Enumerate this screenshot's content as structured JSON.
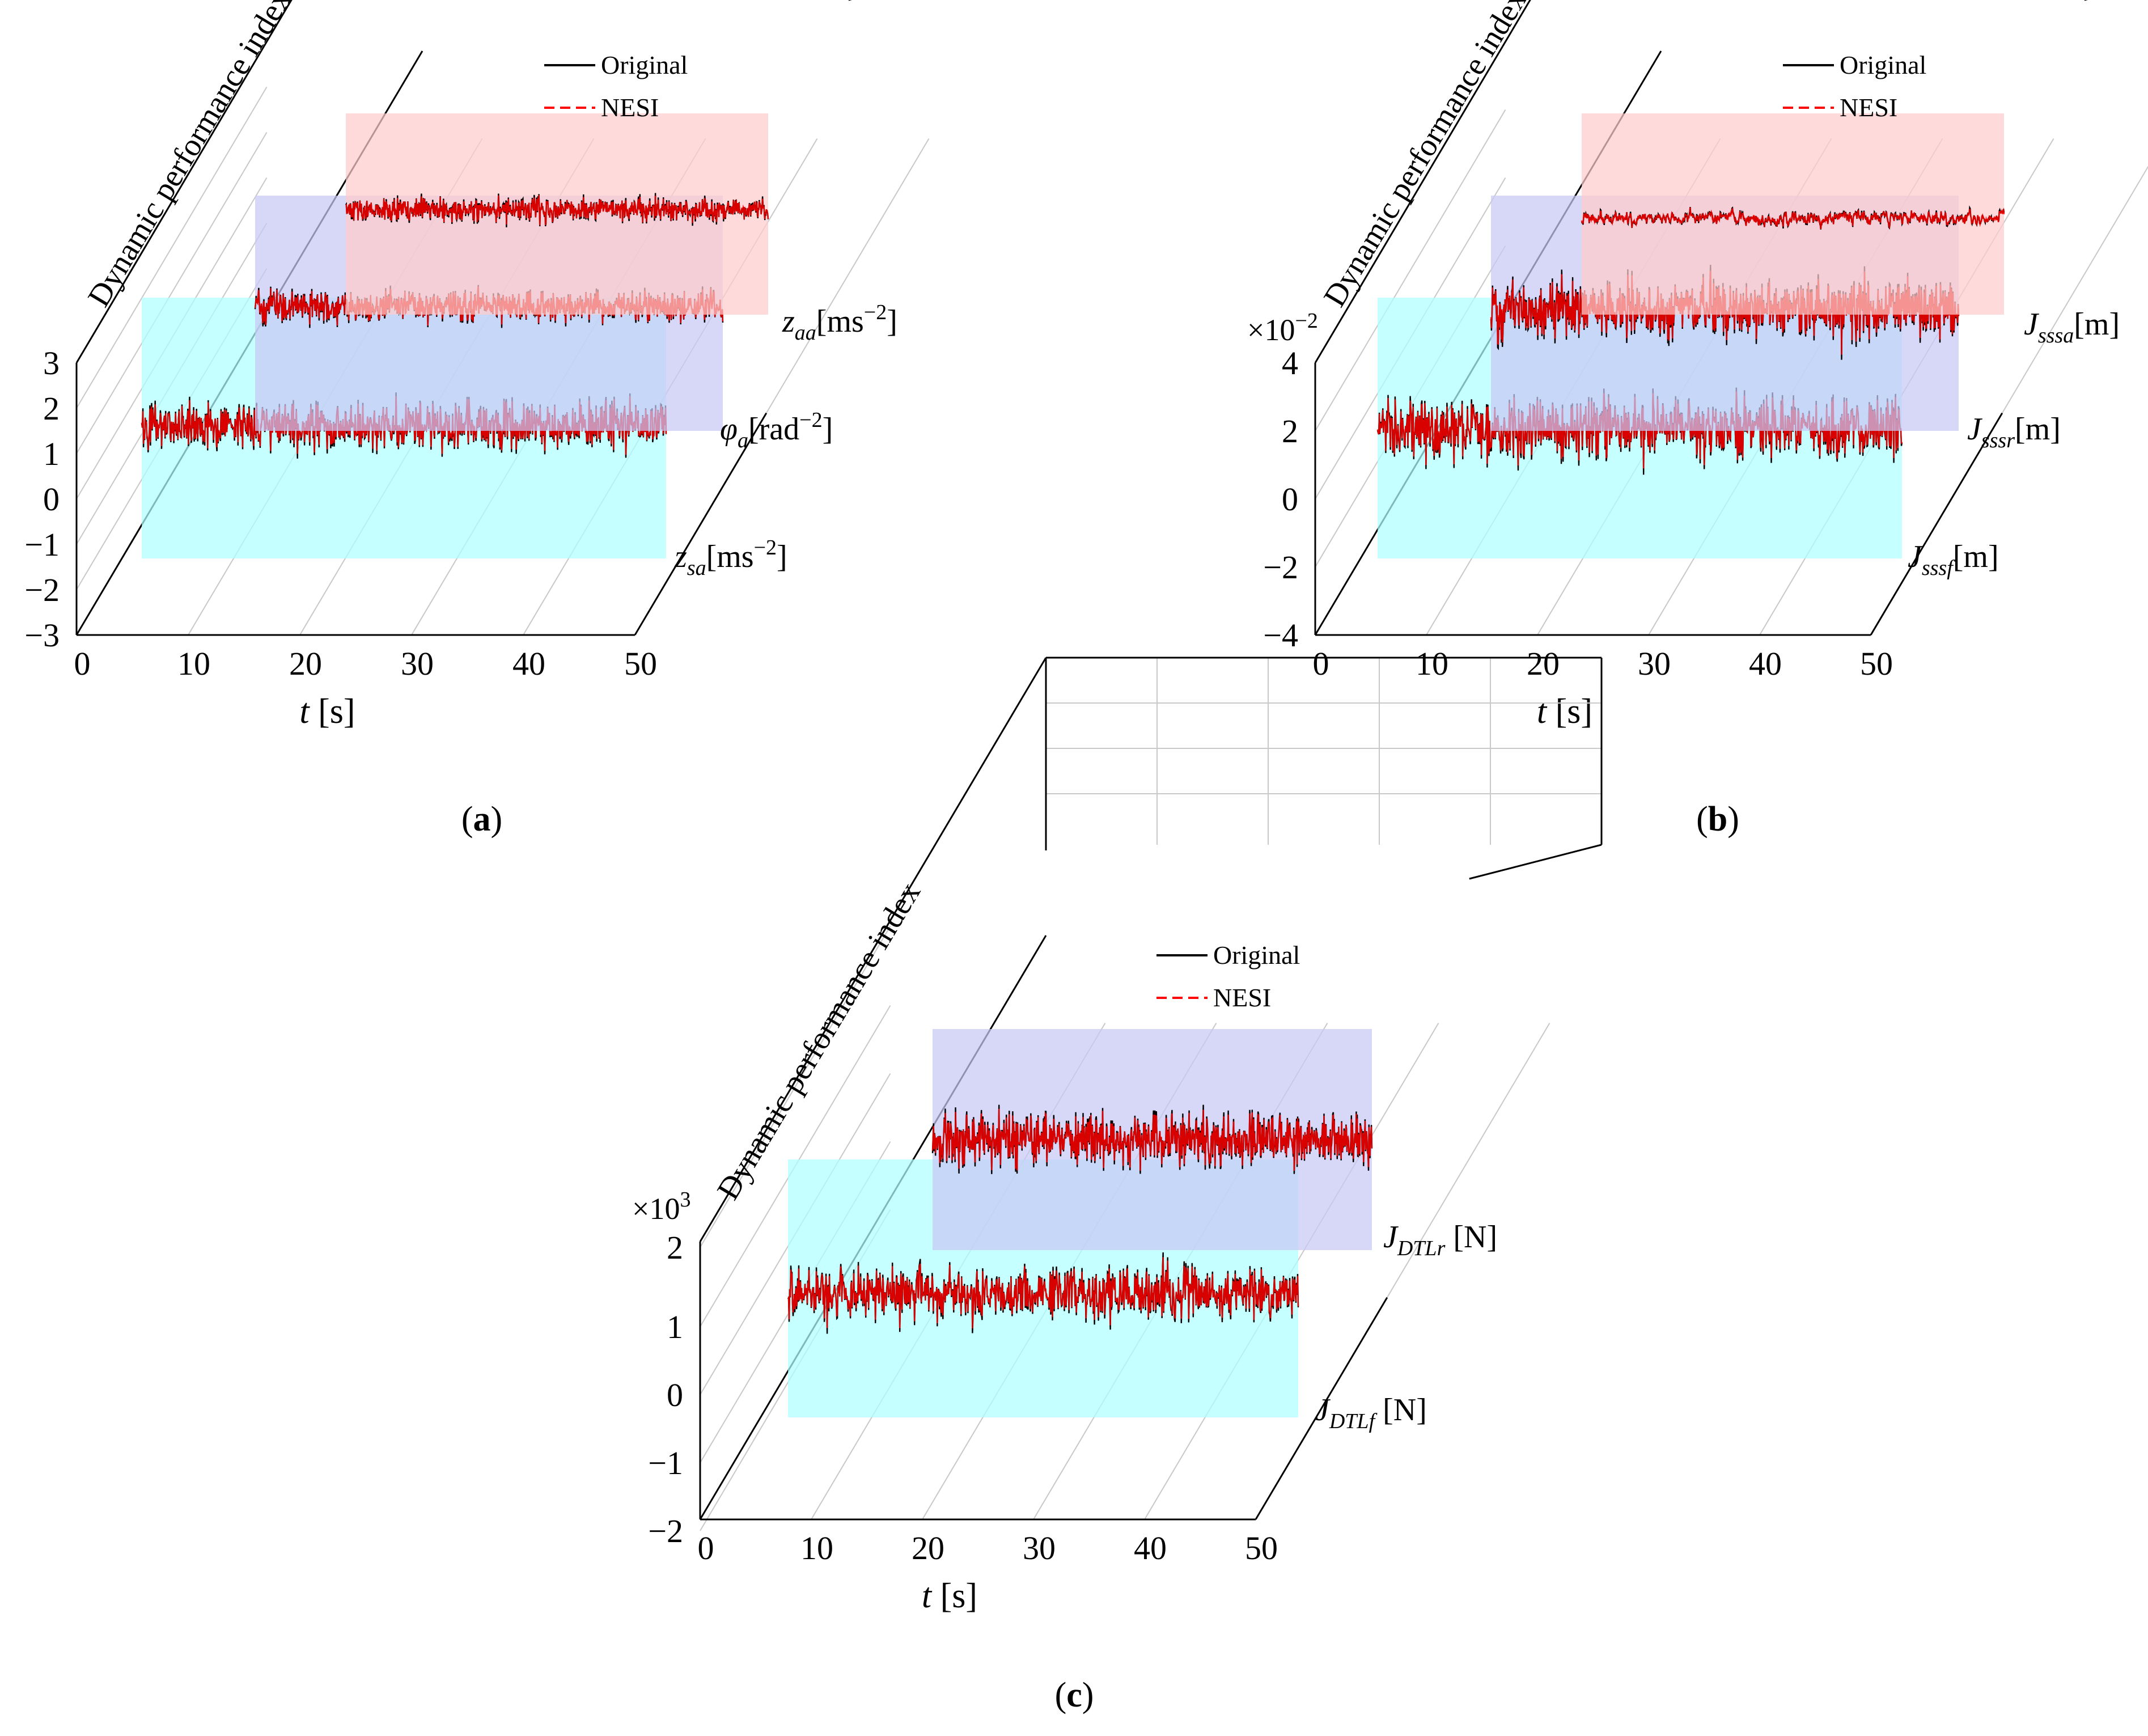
{
  "figure": {
    "panels": [
      {
        "id": "a",
        "caption_letter": "a",
        "chart_data": {
          "type": "line",
          "title": "",
          "zlabel": "Dynamic performance index",
          "multiplier_base": "",
          "multiplier_exp": "",
          "xlabel_var": "t",
          "xlabel_unit": " [s]",
          "xlim": [
            0,
            50
          ],
          "zlim": [
            -3,
            3
          ],
          "x_ticks": [
            "0",
            "10",
            "20",
            "30",
            "40",
            "50"
          ],
          "z_ticks": [
            "3",
            "2",
            "1",
            "0",
            "−1",
            "−2",
            "−3"
          ],
          "legend": [
            "Original",
            "NESI"
          ],
          "legend_position": "top-right",
          "series_colors": {
            "Original": "#000000",
            "NESI": "#ff0000"
          },
          "series": [
            {
              "name": "z_sa",
              "label_main": "z",
              "label_sub": "sa",
              "label_unit": "[ms",
              "label_sup": "−2",
              "label_tail": "]",
              "mean": 1.4,
              "amplitude": 0.45,
              "panel_color": "#b0ffff"
            },
            {
              "name": "φ_a",
              "label_main": "φ",
              "label_sub": "a",
              "label_unit": "[rad",
              "label_sup": "−2",
              "label_tail": "]",
              "mean": 1.4,
              "amplitude": 0.3,
              "panel_color": "#c8c8f5"
            },
            {
              "name": "z_aa",
              "label_main": "z",
              "label_sub": "aa",
              "label_unit": "[ms",
              "label_sup": "−2",
              "label_tail": "]",
              "mean": 1.4,
              "amplitude": 0.22,
              "panel_color": "#ffcccc"
            }
          ]
        }
      },
      {
        "id": "b",
        "caption_letter": "b",
        "chart_data": {
          "type": "line",
          "title": "",
          "zlabel": "Dynamic performance index",
          "multiplier_base": "×10",
          "multiplier_exp": "−2",
          "xlabel_var": "t",
          "xlabel_unit": " [s]",
          "xlim": [
            0,
            50
          ],
          "zlim": [
            -4,
            4
          ],
          "x_ticks": [
            "0",
            "10",
            "20",
            "30",
            "40",
            "50"
          ],
          "z_ticks": [
            "4",
            "2",
            "0",
            "−2",
            "−4"
          ],
          "legend": [
            "Original",
            "NESI"
          ],
          "legend_position": "top-right",
          "series_colors": {
            "Original": "#000000",
            "NESI": "#ff0000"
          },
          "series": [
            {
              "name": "J_sssf",
              "label_main": "J",
              "label_sub": "sssf",
              "label_unit": "[m]",
              "label_sup": "",
              "label_tail": "",
              "mean": 1.8,
              "amplitude": 0.6,
              "panel_color": "#b0ffff"
            },
            {
              "name": "J_sssr",
              "label_main": "J",
              "label_sub": "sssr",
              "label_unit": "[m]",
              "label_sup": "",
              "label_tail": "",
              "mean": 1.8,
              "amplitude": 0.55,
              "panel_color": "#c8c8f5"
            },
            {
              "name": "J_sssa",
              "label_main": "J",
              "label_sub": "sssa",
              "label_unit": "[m]",
              "label_sup": "",
              "label_tail": "",
              "mean": 1.8,
              "amplitude": 0.15,
              "panel_color": "#ffcccc"
            }
          ]
        }
      },
      {
        "id": "c",
        "caption_letter": "c",
        "chart_data": {
          "type": "line",
          "title": "",
          "zlabel": "Dynamic performance index",
          "multiplier_base": "×10",
          "multiplier_exp": "3",
          "xlabel_var": "t",
          "xlabel_unit": " [s]",
          "xlim": [
            0,
            50
          ],
          "zlim": [
            -2,
            2
          ],
          "x_ticks": [
            "0",
            "10",
            "20",
            "30",
            "40",
            "50"
          ],
          "z_ticks": [
            "2",
            "1",
            "0",
            "−1",
            "−2"
          ],
          "legend": [
            "Original",
            "NESI"
          ],
          "legend_position": "top-right",
          "series_colors": {
            "Original": "#000000",
            "NESI": "#ff0000"
          },
          "series": [
            {
              "name": "J_DTLf",
              "label_main": "J",
              "label_sub": "DTLf",
              "label_unit": " [N]",
              "label_sup": "",
              "label_tail": "",
              "mean": 1.0,
              "amplitude": 0.5,
              "panel_color": "#b0ffff"
            },
            {
              "name": "J_DTLr",
              "label_main": "J",
              "label_sub": "DTLr",
              "label_unit": " [N]",
              "label_sup": "",
              "label_tail": "",
              "mean": 1.0,
              "amplitude": 0.5,
              "panel_color": "#c8c8f5"
            }
          ]
        }
      }
    ]
  }
}
